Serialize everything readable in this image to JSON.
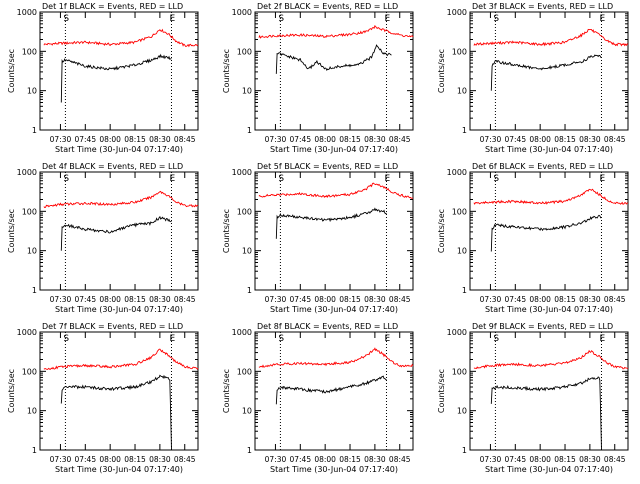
{
  "chart_data": [
    {
      "type": "line",
      "title": "Det 1f BLACK = Events, RED = LLD",
      "ylabel": "Counts/sec",
      "xlabel": "Start Time (30-Jun-04 07:17:40)",
      "x_ticks": [
        "07:30",
        "07:45",
        "08:00",
        "08:15",
        "08:30",
        "08:45"
      ],
      "y_ticks": [
        "1",
        "10",
        "100",
        "1000"
      ],
      "ylim": [
        1,
        1000
      ],
      "y_scale": "log",
      "xlim": [
        "07:17:40",
        "08:53:00"
      ],
      "markers": [
        {
          "label": "S",
          "x": "07:33"
        },
        {
          "label": "E",
          "x": "08:37"
        }
      ],
      "series": [
        {
          "color": "#ff0000",
          "x": [
            "07:20",
            "07:30",
            "07:45",
            "08:00",
            "08:15",
            "08:25",
            "08:30",
            "08:35",
            "08:40",
            "08:45",
            "08:53"
          ],
          "y": [
            150,
            160,
            170,
            150,
            170,
            240,
            360,
            280,
            180,
            140,
            145
          ]
        },
        {
          "color": "#000000",
          "x": [
            "07:30:30",
            "07:31",
            "07:33",
            "07:45",
            "08:00",
            "08:15",
            "08:25",
            "08:30",
            "08:35",
            "08:37"
          ],
          "y": [
            5,
            55,
            60,
            42,
            35,
            45,
            60,
            75,
            70,
            65
          ]
        }
      ]
    },
    {
      "type": "line",
      "title": "Det 2f BLACK = Events, RED = LLD",
      "ylabel": "Counts/sec",
      "xlabel": "Start Time (30-Jun-04 07:17:40)",
      "x_ticks": [
        "07:30",
        "07:45",
        "08:00",
        "08:15",
        "08:30",
        "08:45"
      ],
      "y_ticks": [
        "1",
        "10",
        "100",
        "1000"
      ],
      "ylim": [
        1,
        1000
      ],
      "y_scale": "log",
      "xlim": [
        "07:17:40",
        "08:53:00"
      ],
      "markers": [
        {
          "label": "S",
          "x": "07:33"
        },
        {
          "label": "E",
          "x": "08:37"
        }
      ],
      "series": [
        {
          "color": "#ff0000",
          "x": [
            "07:20",
            "07:30",
            "07:45",
            "08:00",
            "08:15",
            "08:25",
            "08:30",
            "08:35",
            "08:40",
            "08:45",
            "08:53"
          ],
          "y": [
            230,
            250,
            260,
            240,
            270,
            320,
            420,
            350,
            300,
            260,
            230
          ]
        },
        {
          "color": "#000000",
          "x": [
            "07:30:30",
            "07:31",
            "07:35",
            "07:45",
            "07:50",
            "07:55",
            "08:00",
            "08:10",
            "08:20",
            "08:28",
            "08:31",
            "08:35",
            "08:40"
          ],
          "y": [
            25,
            90,
            80,
            60,
            35,
            55,
            35,
            42,
            45,
            70,
            150,
            90,
            80
          ]
        }
      ]
    },
    {
      "type": "line",
      "title": "Det 3f BLACK = Events, RED = LLD",
      "ylabel": "Counts/sec",
      "xlabel": "Start Time (30-Jun-04 07:17:40)",
      "x_ticks": [
        "07:30",
        "07:45",
        "08:00",
        "08:15",
        "08:30",
        "08:45"
      ],
      "y_ticks": [
        "1",
        "10",
        "100",
        "1000"
      ],
      "ylim": [
        1,
        1000
      ],
      "y_scale": "log",
      "xlim": [
        "07:17:40",
        "08:53:00"
      ],
      "markers": [
        {
          "label": "S",
          "x": "07:33"
        },
        {
          "label": "E",
          "x": "08:37"
        }
      ],
      "series": [
        {
          "color": "#ff0000",
          "x": [
            "07:20",
            "07:30",
            "07:45",
            "08:00",
            "08:15",
            "08:25",
            "08:30",
            "08:35",
            "08:40",
            "08:45",
            "08:53"
          ],
          "y": [
            150,
            160,
            170,
            150,
            170,
            260,
            370,
            270,
            190,
            150,
            150
          ]
        },
        {
          "color": "#000000",
          "x": [
            "07:30:30",
            "07:31",
            "07:33",
            "07:45",
            "08:00",
            "08:15",
            "08:25",
            "08:30",
            "08:35",
            "08:37"
          ],
          "y": [
            10,
            45,
            55,
            45,
            35,
            45,
            55,
            70,
            80,
            70
          ]
        }
      ]
    },
    {
      "type": "line",
      "title": "Det 4f BLACK = Events, RED = LLD",
      "ylabel": "Counts/sec",
      "xlabel": "Start Time (30-Jun-04 07:17:40)",
      "x_ticks": [
        "07:30",
        "07:45",
        "08:00",
        "08:15",
        "08:30",
        "08:45"
      ],
      "y_ticks": [
        "1",
        "10",
        "100",
        "1000"
      ],
      "ylim": [
        1,
        1000
      ],
      "y_scale": "log",
      "xlim": [
        "07:17:40",
        "08:53:00"
      ],
      "markers": [
        {
          "label": "S",
          "x": "07:33"
        },
        {
          "label": "E",
          "x": "08:37"
        }
      ],
      "series": [
        {
          "color": "#ff0000",
          "x": [
            "07:20",
            "07:30",
            "07:45",
            "08:00",
            "08:15",
            "08:25",
            "08:30",
            "08:35",
            "08:40",
            "08:45",
            "08:53"
          ],
          "y": [
            130,
            150,
            160,
            150,
            170,
            230,
            320,
            250,
            170,
            140,
            140
          ]
        },
        {
          "color": "#000000",
          "x": [
            "07:30:30",
            "07:31",
            "07:33",
            "07:45",
            "08:00",
            "08:15",
            "08:25",
            "08:30",
            "08:35",
            "08:37"
          ],
          "y": [
            10,
            40,
            45,
            35,
            30,
            45,
            50,
            70,
            60,
            55
          ]
        }
      ]
    },
    {
      "type": "line",
      "title": "Det 5f BLACK = Events, RED = LLD",
      "ylabel": "Counts/sec",
      "xlabel": "Start Time (30-Jun-04 07:17:40)",
      "x_ticks": [
        "07:30",
        "07:45",
        "08:00",
        "08:15",
        "08:30",
        "08:45"
      ],
      "y_ticks": [
        "1",
        "10",
        "100",
        "1000"
      ],
      "ylim": [
        1,
        1000
      ],
      "y_scale": "log",
      "xlim": [
        "07:17:40",
        "08:53:00"
      ],
      "markers": [
        {
          "label": "S",
          "x": "07:33"
        },
        {
          "label": "E",
          "x": "08:37"
        }
      ],
      "series": [
        {
          "color": "#ff0000",
          "x": [
            "07:20",
            "07:30",
            "07:45",
            "08:00",
            "08:15",
            "08:25",
            "08:30",
            "08:35",
            "08:40",
            "08:45",
            "08:53"
          ],
          "y": [
            240,
            260,
            280,
            240,
            270,
            380,
            520,
            420,
            320,
            260,
            220
          ]
        },
        {
          "color": "#000000",
          "x": [
            "07:30:30",
            "07:31",
            "07:33",
            "07:45",
            "08:00",
            "08:15",
            "08:25",
            "08:30",
            "08:35",
            "08:37"
          ],
          "y": [
            20,
            70,
            80,
            70,
            60,
            70,
            90,
            110,
            100,
            90
          ]
        }
      ]
    },
    {
      "type": "line",
      "title": "Det 6f BLACK = Events, RED = LLD",
      "ylabel": "Counts/sec",
      "xlabel": "Start Time (30-Jun-04 07:17:40)",
      "x_ticks": [
        "07:30",
        "07:45",
        "08:00",
        "08:15",
        "08:30",
        "08:45"
      ],
      "y_ticks": [
        "1",
        "10",
        "100",
        "1000"
      ],
      "ylim": [
        1,
        1000
      ],
      "y_scale": "log",
      "xlim": [
        "07:17:40",
        "08:53:00"
      ],
      "markers": [
        {
          "label": "S",
          "x": "07:33"
        },
        {
          "label": "E",
          "x": "08:37"
        }
      ],
      "series": [
        {
          "color": "#ff0000",
          "x": [
            "07:20",
            "07:30",
            "07:45",
            "08:00",
            "08:15",
            "08:25",
            "08:30",
            "08:35",
            "08:40",
            "08:45",
            "08:53"
          ],
          "y": [
            160,
            170,
            180,
            160,
            180,
            260,
            370,
            280,
            200,
            160,
            160
          ]
        },
        {
          "color": "#000000",
          "x": [
            "07:30:30",
            "07:31",
            "07:33",
            "07:45",
            "08:00",
            "08:15",
            "08:25",
            "08:30",
            "08:35",
            "08:37"
          ],
          "y": [
            10,
            35,
            45,
            40,
            35,
            40,
            50,
            65,
            75,
            70
          ]
        }
      ]
    },
    {
      "type": "line",
      "title": "Det 7f BLACK = Events, RED = LLD",
      "ylabel": "Counts/sec",
      "xlabel": "Start Time (30-Jun-04 07:17:40)",
      "x_ticks": [
        "07:30",
        "07:45",
        "08:00",
        "08:15",
        "08:30",
        "08:45"
      ],
      "y_ticks": [
        "1",
        "10",
        "100",
        "1000"
      ],
      "ylim": [
        1,
        1000
      ],
      "y_scale": "log",
      "xlim": [
        "07:17:40",
        "08:53:00"
      ],
      "markers": [
        {
          "label": "S",
          "x": "07:33"
        },
        {
          "label": "E",
          "x": "08:37"
        }
      ],
      "series": [
        {
          "color": "#ff0000",
          "x": [
            "07:20",
            "07:30",
            "07:45",
            "08:00",
            "08:15",
            "08:25",
            "08:30",
            "08:35",
            "08:40",
            "08:45",
            "08:53"
          ],
          "y": [
            110,
            130,
            140,
            130,
            150,
            230,
            360,
            260,
            170,
            130,
            120
          ]
        },
        {
          "color": "#000000",
          "x": [
            "07:30:30",
            "07:31",
            "07:33",
            "07:45",
            "08:00",
            "08:15",
            "08:25",
            "08:30",
            "08:35",
            "08:36",
            "08:37"
          ],
          "y": [
            15,
            35,
            40,
            40,
            35,
            40,
            55,
            75,
            70,
            60,
            1
          ]
        }
      ]
    },
    {
      "type": "line",
      "title": "Det 8f BLACK = Events, RED = LLD",
      "ylabel": "Counts/sec",
      "xlabel": "Start Time (30-Jun-04 07:17:40)",
      "x_ticks": [
        "07:30",
        "07:45",
        "08:00",
        "08:15",
        "08:30",
        "08:45"
      ],
      "y_ticks": [
        "1",
        "10",
        "100",
        "1000"
      ],
      "ylim": [
        1,
        1000
      ],
      "y_scale": "log",
      "xlim": [
        "07:17:40",
        "08:53:00"
      ],
      "markers": [
        {
          "label": "S",
          "x": "07:33"
        },
        {
          "label": "E",
          "x": "08:37"
        }
      ],
      "series": [
        {
          "color": "#ff0000",
          "x": [
            "07:20",
            "07:30",
            "07:45",
            "08:00",
            "08:15",
            "08:25",
            "08:30",
            "08:35",
            "08:40",
            "08:45",
            "08:53"
          ],
          "y": [
            130,
            150,
            160,
            150,
            170,
            250,
            370,
            270,
            180,
            140,
            140
          ]
        },
        {
          "color": "#000000",
          "x": [
            "07:30:30",
            "07:31",
            "07:33",
            "07:45",
            "08:00",
            "08:15",
            "08:25",
            "08:30",
            "08:35",
            "08:37"
          ],
          "y": [
            15,
            35,
            40,
            35,
            30,
            40,
            50,
            60,
            70,
            60
          ]
        }
      ]
    },
    {
      "type": "line",
      "title": "Det 9f BLACK = Events, RED = LLD",
      "ylabel": "Counts/sec",
      "xlabel": "Start Time (30-Jun-04 07:17:40)",
      "x_ticks": [
        "07:30",
        "07:45",
        "08:00",
        "08:15",
        "08:30",
        "08:45"
      ],
      "y_ticks": [
        "1",
        "10",
        "100",
        "1000"
      ],
      "ylim": [
        1,
        1000
      ],
      "y_scale": "log",
      "xlim": [
        "07:17:40",
        "08:53:00"
      ],
      "markers": [
        {
          "label": "S",
          "x": "07:33"
        },
        {
          "label": "E",
          "x": "08:37"
        }
      ],
      "series": [
        {
          "color": "#ff0000",
          "x": [
            "07:20",
            "07:30",
            "07:45",
            "08:00",
            "08:15",
            "08:25",
            "08:30",
            "08:35",
            "08:40",
            "08:45",
            "08:53"
          ],
          "y": [
            120,
            140,
            150,
            140,
            160,
            230,
            330,
            250,
            170,
            130,
            120
          ]
        },
        {
          "color": "#000000",
          "x": [
            "07:30:30",
            "07:31",
            "07:33",
            "07:45",
            "08:00",
            "08:15",
            "08:25",
            "08:30",
            "08:35",
            "08:36",
            "08:37"
          ],
          "y": [
            15,
            35,
            40,
            38,
            35,
            40,
            50,
            65,
            70,
            60,
            1
          ]
        }
      ]
    }
  ]
}
